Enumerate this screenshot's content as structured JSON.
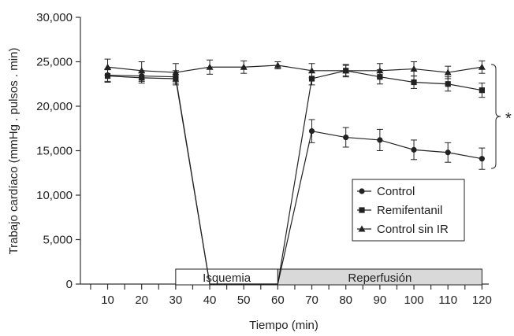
{
  "chart_data": {
    "type": "line",
    "xlabel": "Tiempo (min)",
    "ylabel": "Trabajo cardíaco (mmHg . pulsos . min)",
    "x": [
      10,
      20,
      30,
      40,
      50,
      60,
      70,
      80,
      90,
      100,
      110,
      120
    ],
    "x_ticks": [
      "10",
      "20",
      "30",
      "40",
      "50",
      "60",
      "70",
      "80",
      "90",
      "100",
      "110",
      "120"
    ],
    "xlim": [
      2,
      122
    ],
    "ylim": [
      0,
      30000
    ],
    "y_ticks": [
      0,
      5000,
      10000,
      15000,
      20000,
      25000,
      30000
    ],
    "y_tick_labels": [
      "0",
      "5,000",
      "10,000",
      "15,000",
      "20,000",
      "25,000",
      "30,000"
    ],
    "series": [
      {
        "name": "Control",
        "marker": "circle",
        "points": [
          {
            "x": 10,
            "y": 23500,
            "err": 700
          },
          {
            "x": 20,
            "y": 23400,
            "err": 600
          },
          {
            "x": 30,
            "y": 23300,
            "err": 700
          },
          {
            "x": 40,
            "y": 0
          },
          {
            "x": 60,
            "y": 0
          },
          {
            "x": 70,
            "y": 17200,
            "err": 1300
          },
          {
            "x": 80,
            "y": 16500,
            "err": 1100
          },
          {
            "x": 90,
            "y": 16200,
            "err": 1200
          },
          {
            "x": 100,
            "y": 15100,
            "err": 1100
          },
          {
            "x": 110,
            "y": 14800,
            "err": 1100
          },
          {
            "x": 120,
            "y": 14100,
            "err": 1200
          }
        ]
      },
      {
        "name": "Remifentanil",
        "marker": "square",
        "points": [
          {
            "x": 10,
            "y": 23400,
            "err": 700
          },
          {
            "x": 20,
            "y": 23200,
            "err": 600
          },
          {
            "x": 30,
            "y": 23100,
            "err": 700
          },
          {
            "x": 40,
            "y": 0
          },
          {
            "x": 60,
            "y": 0
          },
          {
            "x": 70,
            "y": 23100,
            "err": 700
          },
          {
            "x": 80,
            "y": 24000,
            "err": 600
          },
          {
            "x": 90,
            "y": 23300,
            "err": 800
          },
          {
            "x": 100,
            "y": 22700,
            "err": 700
          },
          {
            "x": 110,
            "y": 22500,
            "err": 800
          },
          {
            "x": 120,
            "y": 21800,
            "err": 800
          }
        ]
      },
      {
        "name": "Control sin IR",
        "marker": "triangle",
        "points": [
          {
            "x": 10,
            "y": 24400,
            "err": 900
          },
          {
            "x": 20,
            "y": 24000,
            "err": 1000
          },
          {
            "x": 30,
            "y": 23800,
            "err": 1000
          },
          {
            "x": 40,
            "y": 24400,
            "err": 800
          },
          {
            "x": 50,
            "y": 24400,
            "err": 700
          },
          {
            "x": 60,
            "y": 24600,
            "err": 400
          },
          {
            "x": 70,
            "y": 24000,
            "err": 800
          },
          {
            "x": 80,
            "y": 24000,
            "err": 700
          },
          {
            "x": 90,
            "y": 24000,
            "err": 800
          },
          {
            "x": 100,
            "y": 24200,
            "err": 800
          },
          {
            "x": 110,
            "y": 23800,
            "err": 700
          },
          {
            "x": 120,
            "y": 24400,
            "err": 700
          }
        ]
      }
    ],
    "phases": [
      {
        "label": "Isquemia",
        "from": 30,
        "to": 60,
        "fill": "#ffffff"
      },
      {
        "label": "Reperfusión",
        "from": 60,
        "to": 120,
        "fill": "#d9d9d9"
      }
    ],
    "annotation": {
      "text": "*",
      "y_from": 13000,
      "y_to": 24700
    },
    "legend_position": "lower-right",
    "grid": false
  },
  "colors": {
    "line": "#222222",
    "axis": "#333333"
  }
}
